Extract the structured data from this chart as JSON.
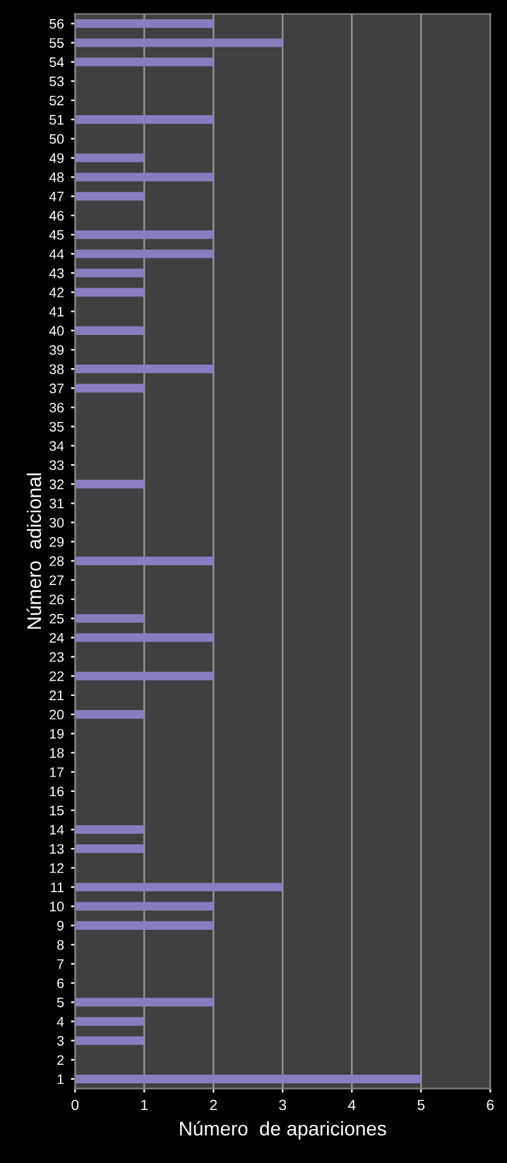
{
  "chart_data": {
    "type": "bar",
    "orientation": "horizontal",
    "xlabel": "Número  de apariciones",
    "ylabel": "Número  adicional",
    "categories": [
      "56",
      "55",
      "54",
      "53",
      "52",
      "51",
      "50",
      "49",
      "48",
      "47",
      "46",
      "45",
      "44",
      "43",
      "42",
      "41",
      "40",
      "39",
      "38",
      "37",
      "36",
      "35",
      "34",
      "33",
      "32",
      "31",
      "30",
      "29",
      "28",
      "27",
      "26",
      "25",
      "24",
      "23",
      "22",
      "21",
      "20",
      "19",
      "18",
      "17",
      "16",
      "15",
      "14",
      "13",
      "12",
      "11",
      "10",
      "9",
      "8",
      "7",
      "6",
      "5",
      "4",
      "3",
      "2",
      "1"
    ],
    "values": [
      2,
      3,
      2,
      0,
      0,
      2,
      0,
      1,
      2,
      1,
      0,
      2,
      2,
      1,
      1,
      0,
      1,
      0,
      2,
      1,
      0,
      0,
      0,
      0,
      1,
      0,
      0,
      0,
      2,
      0,
      0,
      1,
      2,
      0,
      2,
      0,
      1,
      0,
      0,
      0,
      0,
      0,
      1,
      1,
      0,
      3,
      2,
      2,
      0,
      0,
      0,
      2,
      1,
      1,
      0,
      5
    ],
    "color": "#8a7cc0",
    "xlim": [
      0,
      6
    ],
    "xticks": [
      0,
      1,
      2,
      3,
      4,
      5,
      6
    ],
    "grid": "x",
    "legend": false
  }
}
